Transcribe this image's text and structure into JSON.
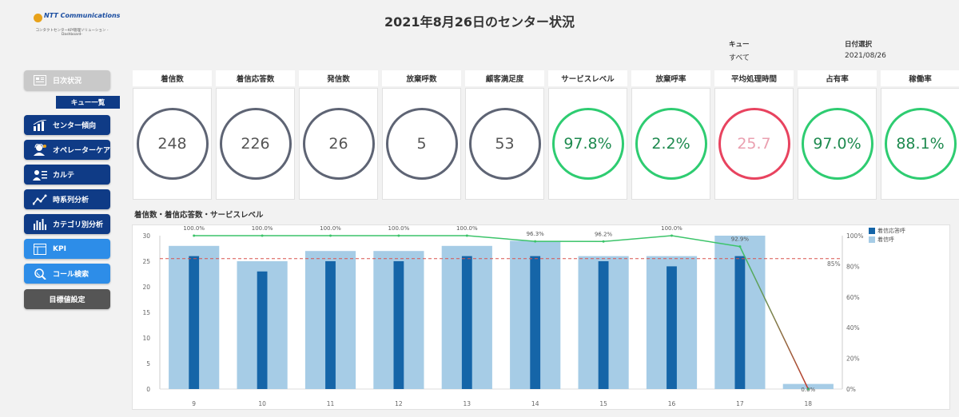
{
  "logo": {
    "brand": "NTT Communications",
    "subtitle": "コンタクトセンターKPI管理ソリューション -Dashboard-"
  },
  "header": {
    "title": "2021年8月26日のセンター状況"
  },
  "filters": {
    "queue": {
      "label": "キュー",
      "value": "すべて"
    },
    "date": {
      "label": "日付選択",
      "value": "2021/08/26"
    }
  },
  "sidebar": {
    "daily": "日次状況",
    "queue_list": "キュー一覧",
    "items": [
      {
        "label": "センター傾向",
        "icon": "bar-trend-icon"
      },
      {
        "label": "オペレーターケア",
        "icon": "operator-icon"
      },
      {
        "label": "カルテ",
        "icon": "chart-record-icon"
      },
      {
        "label": "時系列分析",
        "icon": "line-graph-icon"
      },
      {
        "label": "カテゴリ別分析",
        "icon": "category-bars-icon"
      },
      {
        "label": "KPI",
        "icon": "kpi-grid-icon"
      },
      {
        "label": "コール検索",
        "icon": "call-search-icon"
      }
    ],
    "target": "目標値設定"
  },
  "kpis": [
    {
      "title": "着信数",
      "value": "248",
      "status": "neutral"
    },
    {
      "title": "着信応答数",
      "value": "226",
      "status": "neutral"
    },
    {
      "title": "発信数",
      "value": "26",
      "status": "neutral"
    },
    {
      "title": "放棄呼数",
      "value": "5",
      "status": "neutral"
    },
    {
      "title": "顧客満足度",
      "value": "53",
      "status": "neutral"
    },
    {
      "title": "サービスレベル",
      "value": "97.8%",
      "status": "good"
    },
    {
      "title": "放棄呼率",
      "value": "2.2%",
      "status": "good"
    },
    {
      "title": "平均処理時間",
      "value": "25.7",
      "status": "bad"
    },
    {
      "title": "占有率",
      "value": "97.0%",
      "status": "good"
    },
    {
      "title": "稼働率",
      "value": "88.1%",
      "status": "good"
    }
  ],
  "chart_title": "着信数・着信応答数・サービスレベル",
  "colors": {
    "answered": "#1565a8",
    "incoming": "#a6cce6",
    "service_level": "#3cc46a",
    "target_line": "#d9534f"
  },
  "chart_data": {
    "type": "bar",
    "categories": [
      "9",
      "10",
      "11",
      "12",
      "13",
      "14",
      "15",
      "16",
      "17",
      "18"
    ],
    "series": [
      {
        "name": "着信呼",
        "type": "bar",
        "axis": "left",
        "values": [
          28,
          25,
          27,
          27,
          28,
          29,
          26,
          26,
          30,
          1
        ]
      },
      {
        "name": "着信応答呼",
        "type": "bar",
        "axis": "left",
        "values": [
          26,
          23,
          25,
          25,
          26,
          26,
          25,
          24,
          26,
          0
        ]
      },
      {
        "type": "line",
        "axis": "right",
        "values": [
          100,
          100,
          100,
          100,
          100,
          96.3,
          96.2,
          100,
          92.9,
          0
        ],
        "labels": [
          "100.0%",
          "100.0%",
          "100.0%",
          "100.0%",
          "100.0%",
          "96.3%",
          "96.2%",
          "100.0%",
          "92.9%",
          "0.0%"
        ]
      }
    ],
    "target": {
      "value": 85,
      "label": "85%"
    },
    "ylim_left": [
      0,
      30
    ],
    "yticks_left": [
      "0",
      "5",
      "10",
      "15",
      "20",
      "25",
      "30"
    ],
    "ylim_right": [
      0,
      100
    ],
    "yticks_right": [
      "0%",
      "20%",
      "40%",
      "60%",
      "80%",
      "100%"
    ],
    "legend_position": "top-right"
  }
}
